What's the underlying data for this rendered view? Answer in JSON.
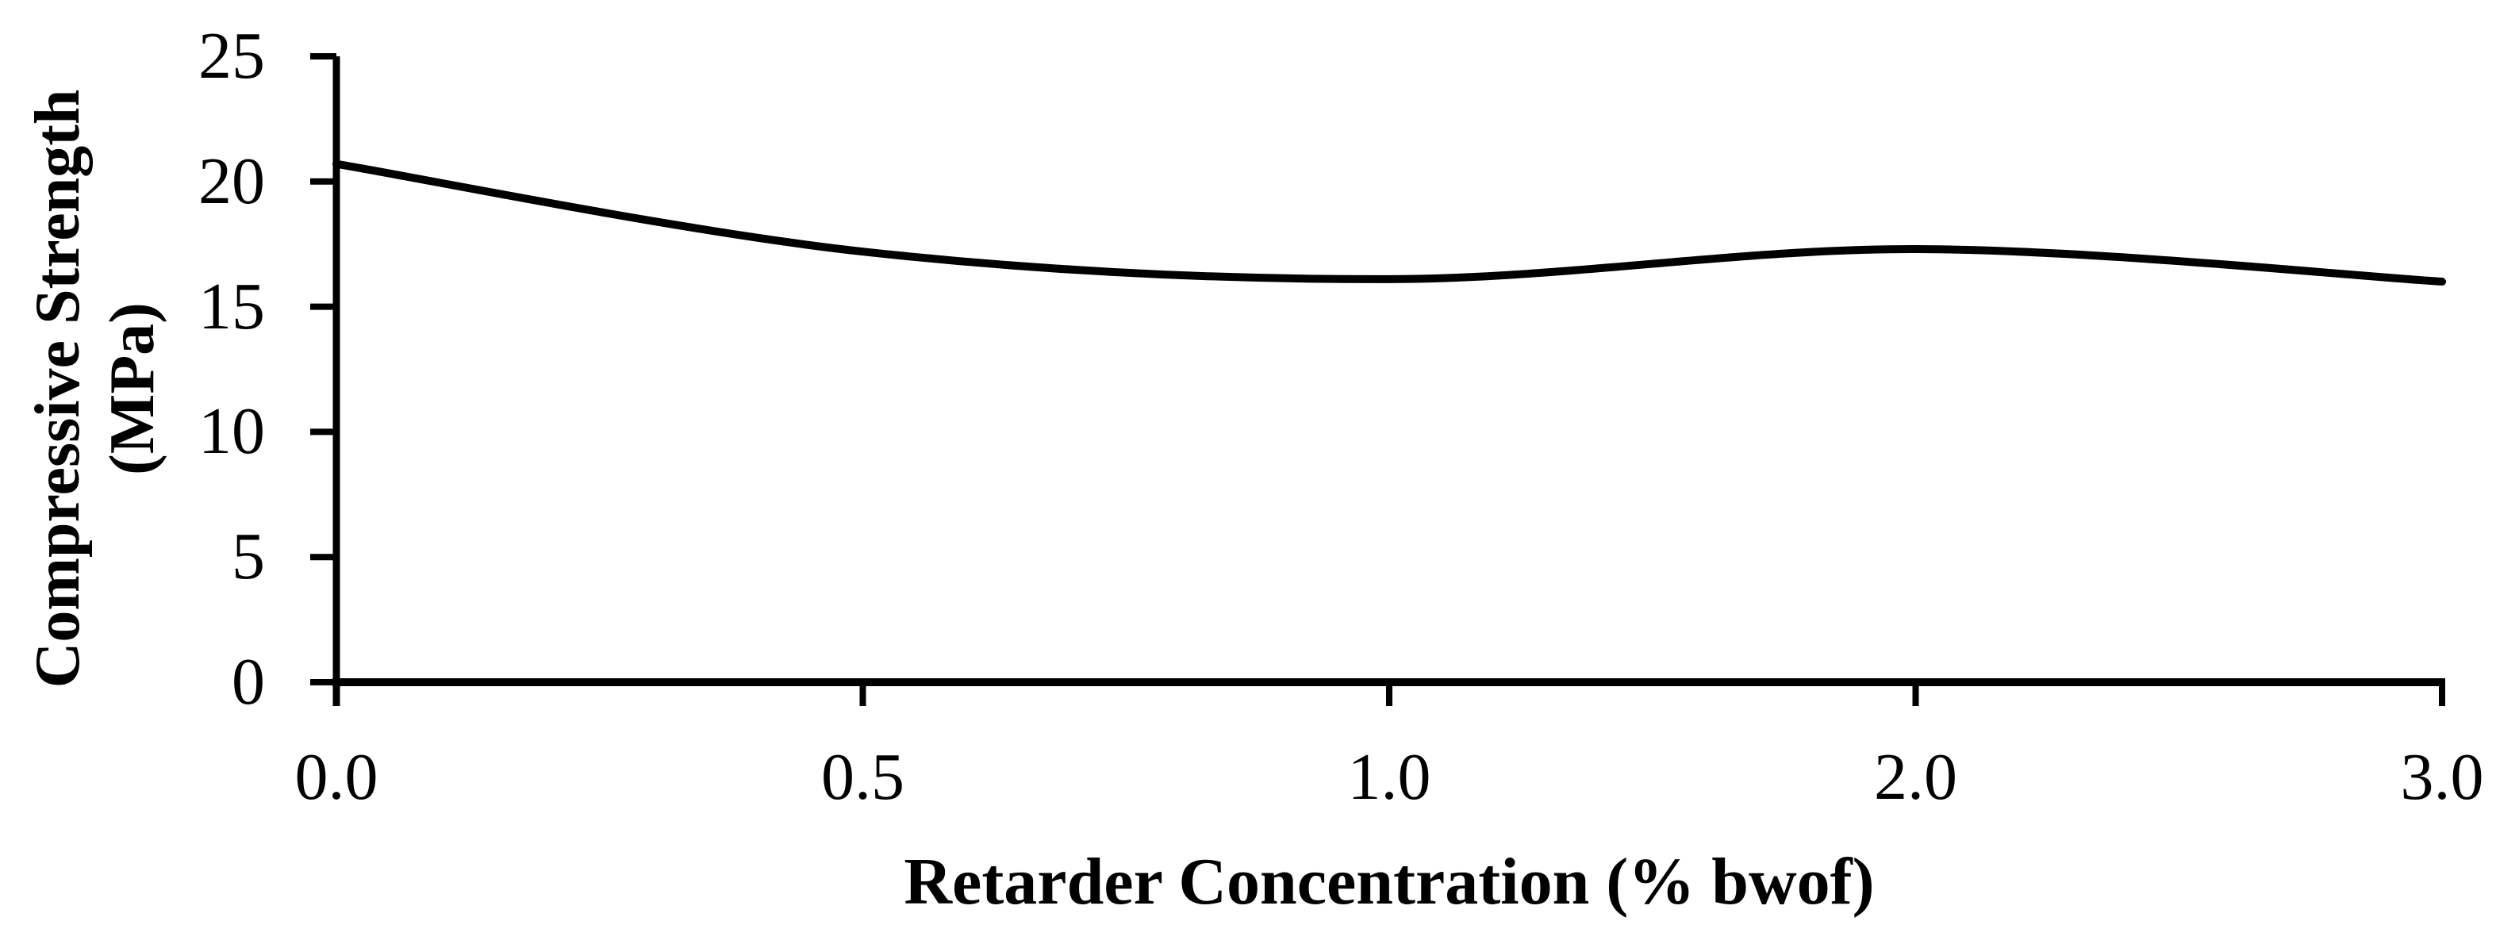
{
  "chart_data": {
    "type": "line",
    "title": "",
    "xlabel": "Retarder Concentration (% bwof)",
    "ylabel": "Compressive Strength (MPa)",
    "ylabel_lines": [
      "Compressive Strength",
      "(MPa)"
    ],
    "categories": [
      "0.0",
      "0.5",
      "1.0",
      "2.0",
      "3.0"
    ],
    "x_tick_labels": [
      "0.0",
      "0.5",
      "1.0",
      "2.0",
      "3.0"
    ],
    "y_tick_labels": [
      "0",
      "5",
      "10",
      "15",
      "20",
      "25"
    ],
    "series": [
      {
        "name": "Compressive Strength (MPa)",
        "values": [
          20.7,
          17.2,
          16.1,
          17.3,
          16.0
        ]
      }
    ],
    "ylim": [
      0,
      25
    ],
    "y_tick_step": 5,
    "x_scale": "categorical-even-spacing",
    "grid": false,
    "legend": false,
    "smooth": true,
    "line_color": "#000000",
    "axis_color": "#000000",
    "background_color": "#ffffff"
  }
}
